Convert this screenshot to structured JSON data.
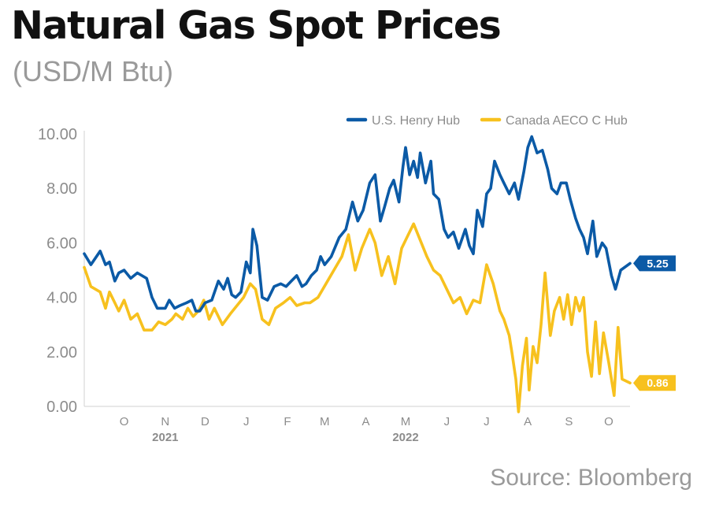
{
  "header": {
    "title": "Natural Gas Spot Prices",
    "subtitle": "(USD/M Btu)"
  },
  "source": "Source: Bloomberg",
  "chart_data": {
    "type": "line",
    "title": "Natural Gas Spot Prices",
    "subtitle": "(USD/M Btu)",
    "ylim": [
      0,
      10
    ],
    "y_ticks": [
      "0.00",
      "2.00",
      "4.00",
      "6.00",
      "8.00",
      "10.00"
    ],
    "x_range": [
      "2021-09-15",
      "2022-10-31"
    ],
    "x_month_ticks": [
      {
        "label": "O",
        "date": "2021-10-15"
      },
      {
        "label": "N",
        "date": "2021-11-15"
      },
      {
        "label": "D",
        "date": "2021-12-15"
      },
      {
        "label": "J",
        "date": "2022-01-15"
      },
      {
        "label": "F",
        "date": "2022-02-15"
      },
      {
        "label": "M",
        "date": "2022-03-15"
      },
      {
        "label": "A",
        "date": "2022-04-15"
      },
      {
        "label": "M",
        "date": "2022-05-15"
      },
      {
        "label": "J",
        "date": "2022-06-15"
      },
      {
        "label": "J",
        "date": "2022-07-15"
      },
      {
        "label": "A",
        "date": "2022-08-15"
      },
      {
        "label": "S",
        "date": "2022-09-15"
      },
      {
        "label": "O",
        "date": "2022-10-15"
      }
    ],
    "x_year_labels": [
      {
        "label": "2021",
        "date": "2021-11-15"
      },
      {
        "label": "2022",
        "date": "2022-05-15"
      }
    ],
    "legend_position": "top-right",
    "grid": false,
    "series": [
      {
        "name": "U.S. Henry Hub",
        "color": "#0b5aa6",
        "end_label": "5.25",
        "points": [
          [
            "2021-09-15",
            5.6
          ],
          [
            "2021-09-20",
            5.2
          ],
          [
            "2021-09-27",
            5.7
          ],
          [
            "2021-10-01",
            5.2
          ],
          [
            "2021-10-04",
            5.3
          ],
          [
            "2021-10-08",
            4.6
          ],
          [
            "2021-10-11",
            4.9
          ],
          [
            "2021-10-15",
            5.0
          ],
          [
            "2021-10-20",
            4.7
          ],
          [
            "2021-10-25",
            4.9
          ],
          [
            "2021-11-01",
            4.7
          ],
          [
            "2021-11-05",
            4.0
          ],
          [
            "2021-11-09",
            3.6
          ],
          [
            "2021-11-15",
            3.6
          ],
          [
            "2021-11-18",
            3.9
          ],
          [
            "2021-11-22",
            3.6
          ],
          [
            "2021-11-26",
            3.7
          ],
          [
            "2021-12-01",
            3.8
          ],
          [
            "2021-12-05",
            3.9
          ],
          [
            "2021-12-08",
            3.5
          ],
          [
            "2021-12-11",
            3.5
          ],
          [
            "2021-12-15",
            3.8
          ],
          [
            "2021-12-20",
            3.9
          ],
          [
            "2021-12-25",
            4.6
          ],
          [
            "2021-12-29",
            4.3
          ],
          [
            "2022-01-01",
            4.7
          ],
          [
            "2022-01-04",
            4.1
          ],
          [
            "2022-01-07",
            4.0
          ],
          [
            "2022-01-11",
            4.2
          ],
          [
            "2022-01-15",
            5.3
          ],
          [
            "2022-01-18",
            4.9
          ],
          [
            "2022-01-20",
            6.5
          ],
          [
            "2022-01-23",
            5.9
          ],
          [
            "2022-01-27",
            4.0
          ],
          [
            "2022-01-31",
            3.9
          ],
          [
            "2022-02-05",
            4.4
          ],
          [
            "2022-02-10",
            4.5
          ],
          [
            "2022-02-14",
            4.4
          ],
          [
            "2022-02-18",
            4.6
          ],
          [
            "2022-02-22",
            4.8
          ],
          [
            "2022-02-26",
            4.4
          ],
          [
            "2022-03-01",
            4.5
          ],
          [
            "2022-03-05",
            4.8
          ],
          [
            "2022-03-09",
            5.0
          ],
          [
            "2022-03-12",
            5.5
          ],
          [
            "2022-03-15",
            5.2
          ],
          [
            "2022-03-20",
            5.5
          ],
          [
            "2022-03-26",
            6.2
          ],
          [
            "2022-03-31",
            6.5
          ],
          [
            "2022-04-05",
            7.5
          ],
          [
            "2022-04-09",
            6.8
          ],
          [
            "2022-04-13",
            7.2
          ],
          [
            "2022-04-18",
            8.2
          ],
          [
            "2022-04-22",
            8.5
          ],
          [
            "2022-04-26",
            6.8
          ],
          [
            "2022-04-29",
            7.3
          ],
          [
            "2022-05-03",
            8.0
          ],
          [
            "2022-05-06",
            8.3
          ],
          [
            "2022-05-10",
            7.5
          ],
          [
            "2022-05-13",
            8.8
          ],
          [
            "2022-05-15",
            9.5
          ],
          [
            "2022-05-18",
            8.5
          ],
          [
            "2022-05-21",
            9.0
          ],
          [
            "2022-05-24",
            8.4
          ],
          [
            "2022-05-26",
            9.3
          ],
          [
            "2022-05-30",
            8.2
          ],
          [
            "2022-06-03",
            9.0
          ],
          [
            "2022-06-05",
            7.8
          ],
          [
            "2022-06-09",
            7.6
          ],
          [
            "2022-06-13",
            6.5
          ],
          [
            "2022-06-16",
            6.2
          ],
          [
            "2022-06-20",
            6.4
          ],
          [
            "2022-06-24",
            5.8
          ],
          [
            "2022-06-29",
            6.5
          ],
          [
            "2022-07-02",
            5.9
          ],
          [
            "2022-07-05",
            5.6
          ],
          [
            "2022-07-08",
            7.2
          ],
          [
            "2022-07-12",
            6.6
          ],
          [
            "2022-07-15",
            7.8
          ],
          [
            "2022-07-18",
            8.0
          ],
          [
            "2022-07-21",
            9.0
          ],
          [
            "2022-07-25",
            8.5
          ],
          [
            "2022-07-28",
            8.2
          ],
          [
            "2022-08-01",
            7.8
          ],
          [
            "2022-08-05",
            8.2
          ],
          [
            "2022-08-08",
            7.6
          ],
          [
            "2022-08-12",
            8.6
          ],
          [
            "2022-08-15",
            9.5
          ],
          [
            "2022-08-18",
            9.9
          ],
          [
            "2022-08-22",
            9.3
          ],
          [
            "2022-08-26",
            9.4
          ],
          [
            "2022-08-30",
            8.7
          ],
          [
            "2022-09-02",
            8.0
          ],
          [
            "2022-09-06",
            7.8
          ],
          [
            "2022-09-09",
            8.2
          ],
          [
            "2022-09-13",
            8.2
          ],
          [
            "2022-09-16",
            7.6
          ],
          [
            "2022-09-20",
            6.9
          ],
          [
            "2022-09-23",
            6.5
          ],
          [
            "2022-09-26",
            6.2
          ],
          [
            "2022-09-29",
            5.6
          ],
          [
            "2022-10-03",
            6.8
          ],
          [
            "2022-10-06",
            5.5
          ],
          [
            "2022-10-10",
            6.0
          ],
          [
            "2022-10-13",
            5.8
          ],
          [
            "2022-10-17",
            4.8
          ],
          [
            "2022-10-20",
            4.3
          ],
          [
            "2022-10-24",
            5.0
          ],
          [
            "2022-10-31",
            5.25
          ]
        ]
      },
      {
        "name": "Canada AECO C Hub",
        "color": "#f7c11e",
        "end_label": "0.86",
        "points": [
          [
            "2021-09-15",
            5.1
          ],
          [
            "2021-09-20",
            4.4
          ],
          [
            "2021-09-27",
            4.2
          ],
          [
            "2021-10-01",
            3.6
          ],
          [
            "2021-10-04",
            4.2
          ],
          [
            "2021-10-08",
            3.8
          ],
          [
            "2021-10-11",
            3.5
          ],
          [
            "2021-10-15",
            3.9
          ],
          [
            "2021-10-20",
            3.2
          ],
          [
            "2021-10-25",
            3.4
          ],
          [
            "2021-10-30",
            2.8
          ],
          [
            "2021-11-05",
            2.8
          ],
          [
            "2021-11-10",
            3.1
          ],
          [
            "2021-11-15",
            3.0
          ],
          [
            "2021-11-20",
            3.2
          ],
          [
            "2021-11-23",
            3.4
          ],
          [
            "2021-11-28",
            3.2
          ],
          [
            "2021-12-02",
            3.6
          ],
          [
            "2021-12-06",
            3.3
          ],
          [
            "2021-12-10",
            3.5
          ],
          [
            "2021-12-14",
            3.9
          ],
          [
            "2021-12-18",
            3.2
          ],
          [
            "2021-12-22",
            3.6
          ],
          [
            "2021-12-28",
            3.0
          ],
          [
            "2022-01-03",
            3.4
          ],
          [
            "2022-01-08",
            3.7
          ],
          [
            "2022-01-13",
            4.0
          ],
          [
            "2022-01-18",
            4.5
          ],
          [
            "2022-01-22",
            4.3
          ],
          [
            "2022-01-27",
            3.2
          ],
          [
            "2022-02-01",
            3.0
          ],
          [
            "2022-02-06",
            3.6
          ],
          [
            "2022-02-12",
            3.8
          ],
          [
            "2022-02-17",
            4.0
          ],
          [
            "2022-02-22",
            3.7
          ],
          [
            "2022-02-28",
            3.8
          ],
          [
            "2022-03-04",
            3.8
          ],
          [
            "2022-03-10",
            4.0
          ],
          [
            "2022-03-16",
            4.5
          ],
          [
            "2022-03-22",
            5.0
          ],
          [
            "2022-03-28",
            5.5
          ],
          [
            "2022-04-02",
            6.3
          ],
          [
            "2022-04-07",
            5.0
          ],
          [
            "2022-04-12",
            5.8
          ],
          [
            "2022-04-18",
            6.5
          ],
          [
            "2022-04-22",
            6.0
          ],
          [
            "2022-04-27",
            4.8
          ],
          [
            "2022-05-02",
            5.5
          ],
          [
            "2022-05-07",
            4.5
          ],
          [
            "2022-05-12",
            5.8
          ],
          [
            "2022-05-16",
            6.2
          ],
          [
            "2022-05-21",
            6.7
          ],
          [
            "2022-05-26",
            6.1
          ],
          [
            "2022-05-31",
            5.5
          ],
          [
            "2022-06-05",
            5.0
          ],
          [
            "2022-06-10",
            4.8
          ],
          [
            "2022-06-15",
            4.3
          ],
          [
            "2022-06-20",
            3.8
          ],
          [
            "2022-06-25",
            4.0
          ],
          [
            "2022-06-30",
            3.4
          ],
          [
            "2022-07-05",
            3.9
          ],
          [
            "2022-07-10",
            3.8
          ],
          [
            "2022-07-15",
            5.2
          ],
          [
            "2022-07-20",
            4.5
          ],
          [
            "2022-07-25",
            3.5
          ],
          [
            "2022-07-28",
            3.2
          ],
          [
            "2022-08-01",
            2.6
          ],
          [
            "2022-08-03",
            2.0
          ],
          [
            "2022-08-06",
            1.0
          ],
          [
            "2022-08-08",
            -0.2
          ],
          [
            "2022-08-11",
            1.5
          ],
          [
            "2022-08-14",
            2.5
          ],
          [
            "2022-08-16",
            0.6
          ],
          [
            "2022-08-19",
            2.2
          ],
          [
            "2022-08-22",
            1.6
          ],
          [
            "2022-08-25",
            3.0
          ],
          [
            "2022-08-28",
            4.9
          ],
          [
            "2022-09-01",
            2.6
          ],
          [
            "2022-09-04",
            3.5
          ],
          [
            "2022-09-08",
            4.0
          ],
          [
            "2022-09-11",
            3.2
          ],
          [
            "2022-09-14",
            4.1
          ],
          [
            "2022-09-17",
            3.0
          ],
          [
            "2022-09-20",
            4.0
          ],
          [
            "2022-09-23",
            3.5
          ],
          [
            "2022-09-26",
            4.0
          ],
          [
            "2022-09-29",
            2.0
          ],
          [
            "2022-10-02",
            1.1
          ],
          [
            "2022-10-05",
            3.1
          ],
          [
            "2022-10-08",
            1.2
          ],
          [
            "2022-10-11",
            2.7
          ],
          [
            "2022-10-15",
            1.6
          ],
          [
            "2022-10-19",
            0.4
          ],
          [
            "2022-10-22",
            2.9
          ],
          [
            "2022-10-25",
            1.0
          ],
          [
            "2022-10-31",
            0.86
          ]
        ]
      }
    ]
  }
}
